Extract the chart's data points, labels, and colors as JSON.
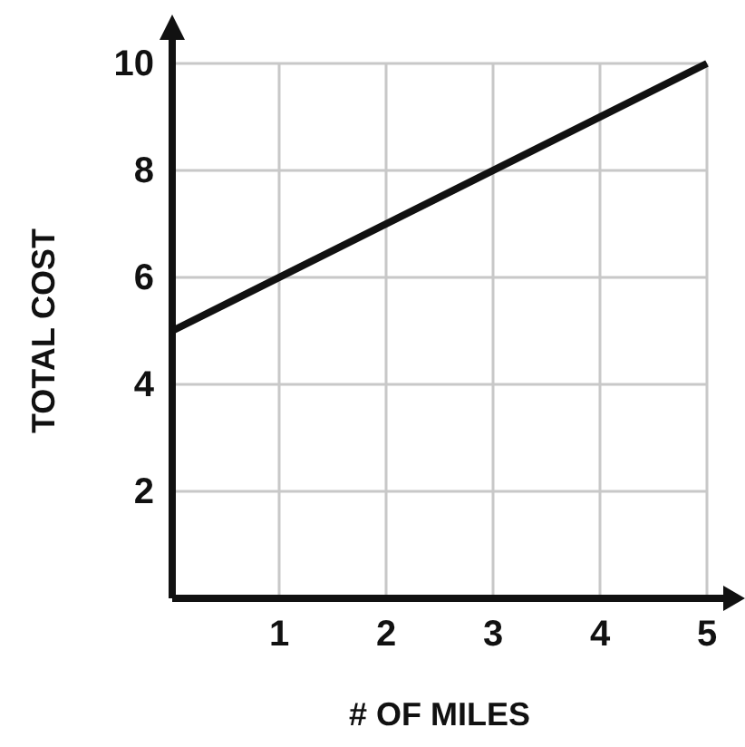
{
  "chart_data": {
    "type": "line",
    "xlabel": "# OF MILES",
    "ylabel": "TOTAL COST",
    "x": [
      0,
      5
    ],
    "series": [
      {
        "color": "#111111",
        "values": [
          5,
          10
        ]
      }
    ],
    "xlim": [
      0,
      5
    ],
    "ylim": [
      0,
      10
    ],
    "xticks": [
      1,
      2,
      3,
      4,
      5
    ],
    "yticks": [
      2,
      4,
      6,
      8,
      10
    ],
    "grid": true,
    "marker": "none",
    "line_style": "solid"
  }
}
